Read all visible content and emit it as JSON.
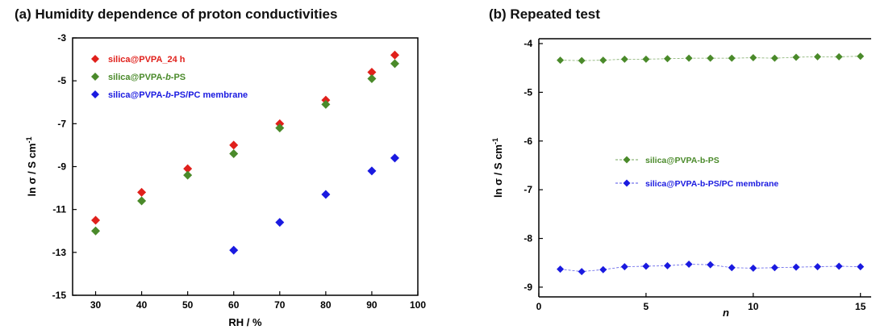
{
  "chart_data": [
    {
      "type": "scatter",
      "title": "(a) Humidity dependence of proton conductivities",
      "xlabel": "RH / %",
      "ylabel_main": "ln σ / S cm",
      "ylabel_sup": "-1",
      "xlim": [
        25,
        100
      ],
      "ylim": [
        -15,
        -3
      ],
      "xticks": [
        30,
        40,
        50,
        60,
        70,
        80,
        90,
        100
      ],
      "yticks": [
        -3,
        -5,
        -7,
        -9,
        -11,
        -13,
        -15
      ],
      "grid": false,
      "legend_position": "top-left",
      "series": [
        {
          "name_parts": [
            "silica@PVPA_24 h"
          ],
          "color": "#e0201b",
          "x": [
            30,
            40,
            50,
            60,
            70,
            80,
            90,
            95
          ],
          "y": [
            -11.5,
            -10.2,
            -9.1,
            -8.0,
            -7.0,
            -5.9,
            -4.6,
            -3.8
          ]
        },
        {
          "name_parts": [
            "silica@PVPA-",
            "b",
            "-PS"
          ],
          "color": "#4a8a2a",
          "x": [
            30,
            40,
            50,
            60,
            70,
            80,
            90,
            95
          ],
          "y": [
            -12.0,
            -10.6,
            -9.4,
            -8.4,
            -7.2,
            -6.1,
            -4.9,
            -4.2
          ]
        },
        {
          "name_parts": [
            "silica@PVPA-",
            "b",
            "-PS/PC membrane"
          ],
          "color": "#1a1ae0",
          "x": [
            60,
            70,
            80,
            90,
            95
          ],
          "y": [
            -12.9,
            -11.6,
            -10.3,
            -9.2,
            -8.6
          ]
        }
      ]
    },
    {
      "type": "line",
      "title": "(b) Repeated test",
      "xlabel": "n",
      "ylabel_main": "ln σ / S cm",
      "ylabel_sup": "-1",
      "xlim": [
        0,
        15.5
      ],
      "ylim": [
        -9.2,
        -3.9
      ],
      "xticks": [
        0,
        5,
        10,
        15
      ],
      "yticks": [
        -4,
        -5,
        -6,
        -7,
        -8,
        -9
      ],
      "grid": false,
      "legend_position": "center-left",
      "series": [
        {
          "name": "silica@PVPA-b-PS",
          "color": "#4a8a2a",
          "x": [
            1,
            2,
            3,
            4,
            5,
            6,
            7,
            8,
            9,
            10,
            11,
            12,
            13,
            14,
            15
          ],
          "y": [
            -4.34,
            -4.35,
            -4.34,
            -4.32,
            -4.32,
            -4.31,
            -4.3,
            -4.3,
            -4.3,
            -4.29,
            -4.3,
            -4.28,
            -4.27,
            -4.27,
            -4.26
          ]
        },
        {
          "name": "silica@PVPA-b-PS/PC membrane",
          "color": "#1a1ae0",
          "x": [
            1,
            2,
            3,
            4,
            5,
            6,
            7,
            8,
            9,
            10,
            11,
            12,
            13,
            14,
            15
          ],
          "y": [
            -8.63,
            -8.68,
            -8.64,
            -8.58,
            -8.57,
            -8.56,
            -8.53,
            -8.54,
            -8.6,
            -8.61,
            -8.6,
            -8.59,
            -8.58,
            -8.57,
            -8.58
          ]
        }
      ]
    }
  ]
}
